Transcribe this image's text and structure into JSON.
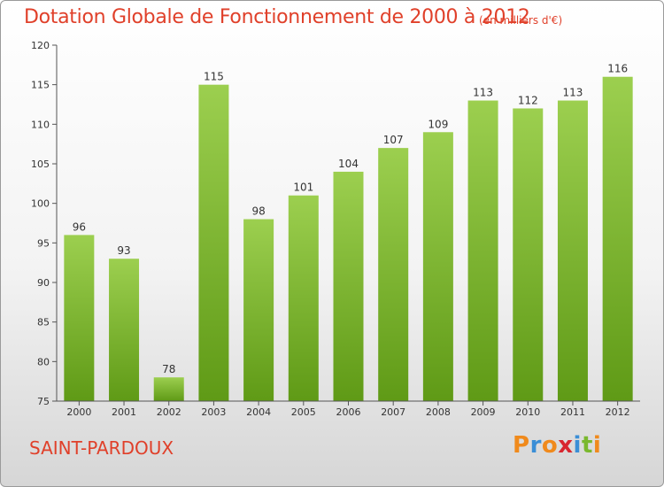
{
  "chart_data": {
    "type": "bar",
    "title": "Dotation Globale de Fonctionnement de 2000 à 2012",
    "subtitle": "(en milliers d'€)",
    "categories": [
      "2000",
      "2001",
      "2002",
      "2003",
      "2004",
      "2005",
      "2006",
      "2007",
      "2008",
      "2009",
      "2010",
      "2011",
      "2012"
    ],
    "values": [
      96,
      93,
      78,
      115,
      98,
      101,
      104,
      107,
      109,
      113,
      112,
      113,
      116
    ],
    "ylim": [
      75,
      120
    ],
    "yticks": [
      75,
      80,
      85,
      90,
      95,
      100,
      105,
      110,
      115,
      120
    ],
    "xlabel": "",
    "ylabel": "",
    "grid": false,
    "bar_color_top": "#9ccf4f",
    "bar_color_bottom": "#5f9a16"
  },
  "footer": {
    "commune": "SAINT-PARDOUX",
    "logo": "Proxiti"
  },
  "colors": {
    "title": "#e0402a",
    "logo_letters": [
      "#f08a1c",
      "#3a8ed6",
      "#f08a1c",
      "#d8262f",
      "#3a8ed6",
      "#7ab82e",
      "#f08a1c"
    ]
  }
}
